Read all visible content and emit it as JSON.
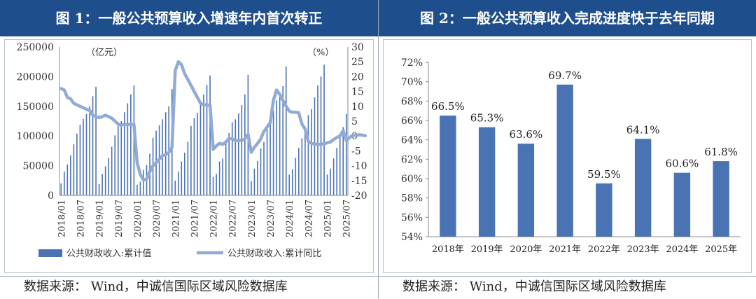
{
  "panel1": {
    "header": "图 1：一般公共预算收入增速年内首次转正",
    "source": "数据来源：  Wind，中诚信国际区域风险数据库"
  },
  "panel2": {
    "header": "图 2：一般公共预算收入完成进度快于去年同期",
    "source": "数据来源：  Wind，中诚信国际区域风险数据库"
  },
  "colors": {
    "header_bg": "#1f4e8c",
    "bar": "#4a73b4",
    "line": "#91aad6"
  },
  "chart_data": [
    {
      "type": "bar+line",
      "left_unit": "（亿元）",
      "right_unit": "（%）",
      "ylim_left": [
        0,
        250000
      ],
      "yticks_left": [
        "0",
        "50000",
        "100000",
        "150000",
        "200000",
        "250000"
      ],
      "ylim_right": [
        -20,
        30
      ],
      "yticks_right": [
        "-20",
        "-15",
        "-10",
        "-5",
        "0",
        "5",
        "10",
        "15",
        "20",
        "25",
        "30"
      ],
      "x_tick_labels": [
        "2018/01",
        "2018/07",
        "2019/01",
        "2019/07",
        "2020/01",
        "2020/07",
        "2021/01",
        "2021/07",
        "2022/01",
        "2022/07",
        "2023/01",
        "2023/07",
        "2024/01",
        "2024/07",
        "2025/01",
        "2025/07"
      ],
      "series": [
        {
          "name": "公共财政收入:累计值",
          "type": "bar",
          "values": [
            [
              20000,
              40000,
              52000,
              67000,
              86000,
              104000,
              119000,
              129000,
              137000,
              150000,
              167000,
              183000
            ],
            [
              19000,
              36000,
              49000,
              63000,
              82000,
              101000,
              117000,
              125000,
              140000,
              155000,
              170000,
              185000
            ],
            [
              18000,
              23000,
              43000,
              51000,
              70000,
              97000,
              109000,
              118000,
              128000,
              140000,
              150000,
              179000
            ],
            [
              25000,
              40000,
              57000,
              72000,
              90000,
              117000,
              130000,
              139000,
              155000,
              170000,
              186000,
              202000
            ],
            [
              31000,
              36000,
              57000,
              62000,
              91000,
              105000,
              123000,
              128000,
              138000,
              152000,
              170000,
              203000
            ],
            [
              24000,
              45000,
              58000,
              79000,
              90000,
              119000,
              130000,
              143000,
              160000,
              170000,
              184000,
              217000
            ],
            [
              35000,
              44000,
              63000,
              80000,
              96000,
              115000,
              135000,
              145000,
              165000,
              185000,
              200000,
              220000
            ],
            [
              35000,
              45000,
              62000,
              80000,
              100000,
              115000,
              137000
            ]
          ]
        },
        {
          "name": "公共财政收入:累计同比",
          "type": "line",
          "values": [
            16,
            15.5,
            13,
            12.5,
            11,
            10.5,
            10,
            9.5,
            9,
            8.6,
            7,
            6.5,
            6.2,
            6.5,
            7,
            6.5,
            6,
            5,
            4,
            3.6,
            4,
            3.8,
            4,
            3.8,
            -9,
            -13,
            -14.8,
            -14.5,
            -12,
            -10,
            -9,
            -7.8,
            -6.6,
            -6.3,
            -5.5,
            -3.9,
            22,
            25,
            24,
            21,
            19,
            17,
            15,
            13,
            11,
            10.5,
            10.5,
            10.3,
            -4.5,
            -3.3,
            -2.5,
            -2.8,
            -2,
            -0.8,
            -1,
            -1.6,
            -1.5,
            -1.5,
            -1,
            0.6,
            -5.5,
            -3.8,
            -2.5,
            -1,
            1.5,
            3,
            4.5,
            12,
            15.5,
            14,
            12,
            10,
            8.4,
            8,
            8,
            7.8,
            4,
            2.3,
            -1.8,
            -2.5,
            -2.7,
            -2.8,
            -2.8,
            -2.6,
            -2.3,
            -2,
            -1.2,
            -0.5,
            0,
            1.8,
            -1.6,
            -0.5,
            0.2,
            0.2,
            0.4,
            0.3,
            0.1
          ]
        }
      ]
    },
    {
      "type": "bar",
      "categories": [
        "2018年",
        "2019年",
        "2020年",
        "2021年",
        "2022年",
        "2023年",
        "2024年",
        "2025年"
      ],
      "values": [
        66.5,
        65.3,
        63.6,
        69.7,
        59.5,
        64.1,
        60.6,
        61.8
      ],
      "value_labels": [
        "66.5%",
        "65.3%",
        "63.6%",
        "69.7%",
        "59.5%",
        "64.1%",
        "60.6%",
        "61.8%"
      ],
      "ylim": [
        54,
        72
      ],
      "yticks": [
        "54%",
        "56%",
        "58%",
        "60%",
        "62%",
        "64%",
        "66%",
        "68%",
        "70%",
        "72%"
      ]
    }
  ]
}
